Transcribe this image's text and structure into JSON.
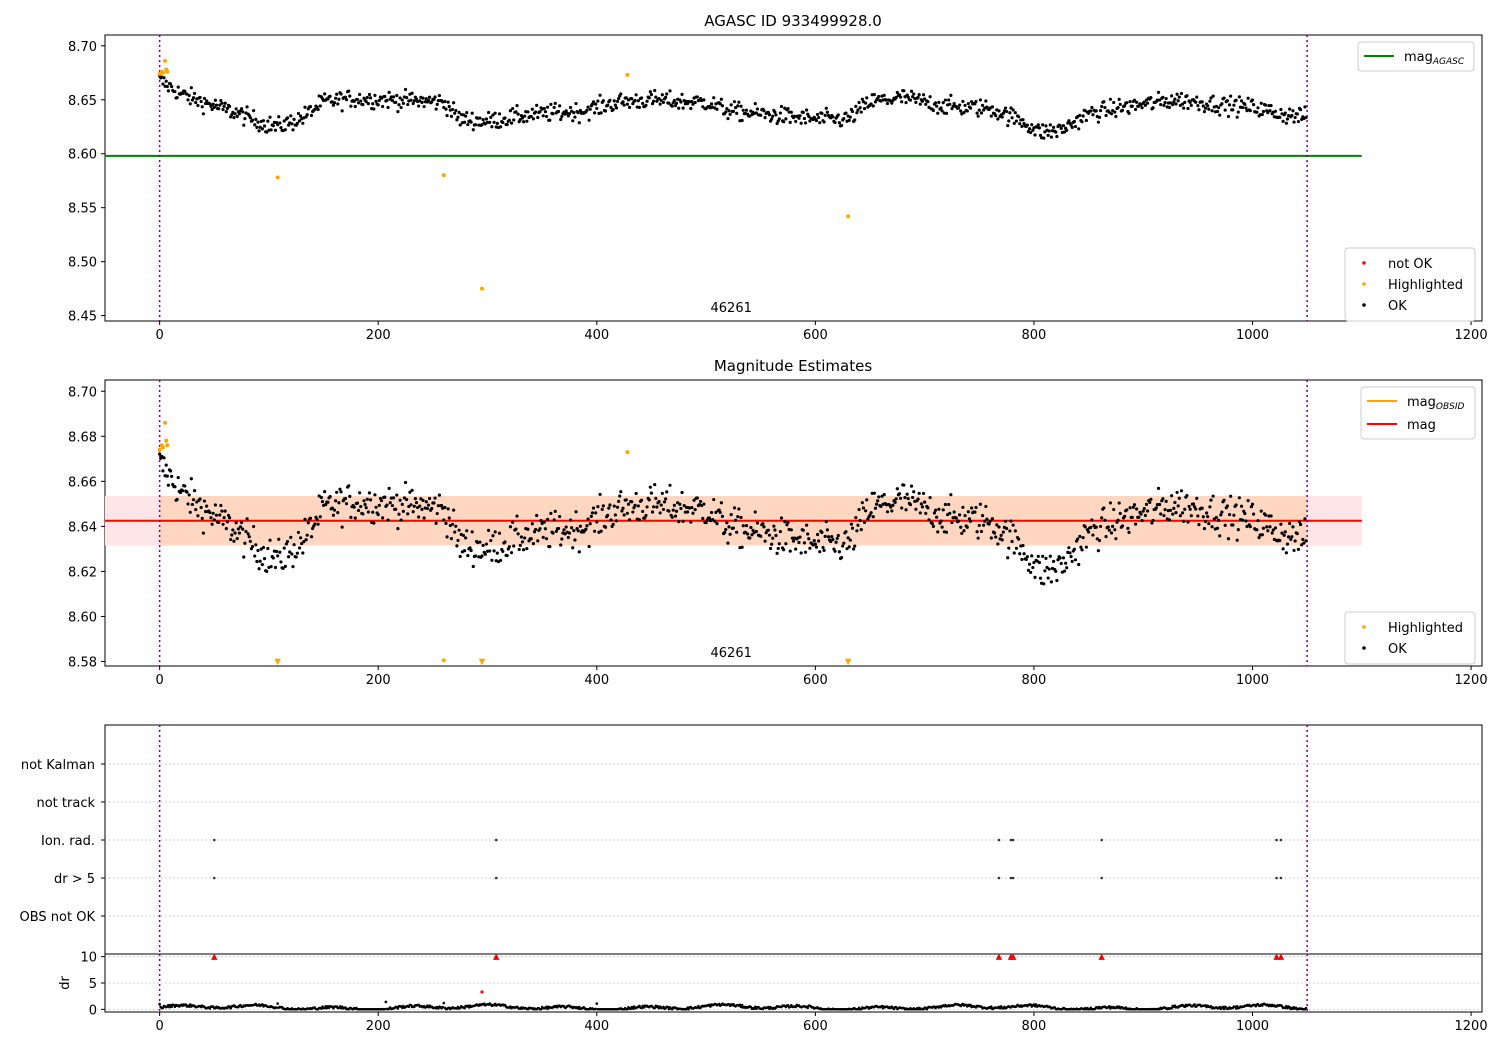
{
  "chart_data": [
    {
      "type": "scatter",
      "title": "AGASC ID 933499928.0",
      "xlim": [
        -50,
        1210
      ],
      "ylim": [
        8.445,
        8.71
      ],
      "x_ticks": [
        0,
        200,
        400,
        600,
        800,
        1000,
        1200
      ],
      "y_ticks": [
        "8.45",
        "8.50",
        "8.55",
        "8.60",
        "8.65",
        "8.70"
      ],
      "annotation": "46261",
      "obs_boundaries": [
        0,
        1050
      ],
      "reference_line": {
        "name": "mag_AGASC",
        "y": 8.598,
        "x_range": [
          -50,
          1100
        ],
        "color": "#008000"
      },
      "legend_lines": [
        {
          "label": "mag",
          "sub": "AGASC",
          "color": "#008000"
        }
      ],
      "legend_points": [
        {
          "label": "not OK",
          "color": "#ff0000"
        },
        {
          "label": "Highlighted",
          "color": "#ffa500"
        },
        {
          "label": "OK",
          "color": "#000000"
        }
      ],
      "series": [
        {
          "name": "OK",
          "color": "#000000",
          "generator": "ok_mag",
          "x_range": [
            0,
            1050
          ],
          "n": 1050
        },
        {
          "name": "Highlighted",
          "color": "#ffa500",
          "x": [
            0,
            2,
            3,
            5,
            6,
            7,
            108,
            260,
            295,
            428,
            630
          ],
          "y": [
            8.674,
            8.676,
            8.675,
            8.686,
            8.678,
            8.676,
            8.578,
            8.58,
            8.475,
            8.673,
            8.542
          ]
        }
      ]
    },
    {
      "type": "scatter",
      "title": "Magnitude Estimates",
      "xlim": [
        -50,
        1210
      ],
      "ylim": [
        8.578,
        8.705
      ],
      "x_ticks": [
        0,
        200,
        400,
        600,
        800,
        1000,
        1200
      ],
      "y_ticks": [
        "8.58",
        "8.60",
        "8.62",
        "8.64",
        "8.66",
        "8.68",
        "8.70"
      ],
      "annotation": "46261",
      "obs_boundaries": [
        0,
        1050
      ],
      "mag": {
        "y": 8.6425,
        "x_range": [
          -50,
          1100
        ],
        "color": "#ff0000"
      },
      "mag_band": {
        "y_low": 8.6315,
        "y_high": 8.6535,
        "x_range": [
          -50,
          1100
        ],
        "color": "#ffe4e8"
      },
      "mag_obsid_band": {
        "y_low": 8.6315,
        "y_high": 8.6535,
        "x_range": [
          0,
          1050
        ],
        "color": "#ffd7c0"
      },
      "mag_obsid": {
        "y": 8.6425,
        "x_range": [
          0,
          1050
        ],
        "color": "#ffa500"
      },
      "legend_lines": [
        {
          "label": "mag",
          "sub": "OBSID",
          "color": "#ffa500"
        },
        {
          "label": "mag",
          "sub": "",
          "color": "#ff0000"
        }
      ],
      "legend_points": [
        {
          "label": "Highlighted",
          "color": "#ffa500"
        },
        {
          "label": "OK",
          "color": "#000000"
        }
      ],
      "series": [
        {
          "name": "OK",
          "color": "#000000",
          "generator": "ok_mag",
          "x_range": [
            0,
            1050
          ],
          "n": 1050
        },
        {
          "name": "Highlighted",
          "color": "#ffa500",
          "x": [
            0,
            2,
            3,
            5,
            6,
            7,
            428,
            260
          ],
          "y": [
            8.674,
            8.676,
            8.675,
            8.686,
            8.678,
            8.676,
            8.673,
            8.5805
          ]
        },
        {
          "name": "Highlighted (below axis)",
          "color": "#ffa500",
          "marker": "triangle-down",
          "x": [
            108,
            295,
            630
          ],
          "y": [
            8.5795,
            8.5795,
            8.5795
          ]
        }
      ]
    },
    {
      "type": "scatter",
      "title": "",
      "xlim": [
        -50,
        1210
      ],
      "categories": [
        "not Kalman",
        "not track",
        "Ion. rad.",
        "dr > 5",
        "OBS not OK"
      ],
      "obs_boundaries": [
        0,
        1050
      ],
      "flag_points": {
        "Ion. rad.": [
          50,
          308,
          768,
          779,
          781,
          862,
          1022,
          1026
        ],
        "dr > 5": [
          50,
          308,
          768,
          779,
          781,
          862,
          1022,
          1026
        ]
      }
    },
    {
      "type": "scatter",
      "title": "",
      "ylabel": "dr",
      "xlim": [
        -50,
        1210
      ],
      "ylim": [
        -0.5,
        10.5
      ],
      "x_ticks": [
        "0",
        "200",
        "400",
        "600",
        "800",
        "1000",
        "1200"
      ],
      "y_ticks": [
        "0",
        "5",
        "10"
      ],
      "obs_boundaries": [
        0,
        1050
      ],
      "series": [
        {
          "name": "dr",
          "color": "#000000",
          "generator": "ok_dr",
          "x_range": [
            0,
            1050
          ],
          "n": 1050
        },
        {
          "name": "dr > 5 (clipped)",
          "color": "#ff0000",
          "marker": "triangle-up",
          "x": [
            50,
            308,
            768,
            779,
            781,
            862,
            1022,
            1026
          ],
          "y": [
            10,
            10,
            10,
            10,
            10,
            10,
            10,
            10
          ]
        },
        {
          "name": "dr outlier",
          "color": "#ff0000",
          "x": [
            295
          ],
          "y": [
            3.3
          ]
        }
      ]
    }
  ]
}
